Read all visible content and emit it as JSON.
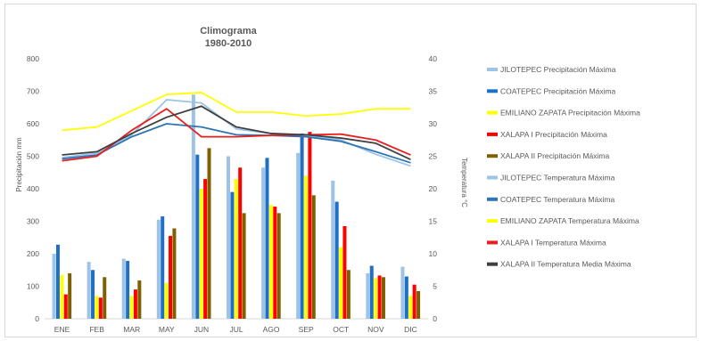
{
  "chart_data": {
    "type": "bar",
    "title": "Climograma",
    "subtitle": "1980-2010",
    "ylabel_left": "Precipitación  mm",
    "ylabel_right": "Temperatura  °C",
    "categories": [
      "ENE",
      "FEB",
      "MAR",
      "MAY",
      "JUN",
      "JUL",
      "AGO",
      "SEP",
      "OCT",
      "NOV",
      "DIC"
    ],
    "ylim_left": [
      0,
      800
    ],
    "yticks_left": [
      "0",
      "100",
      "200",
      "300",
      "400",
      "500",
      "600",
      "700",
      "800"
    ],
    "ylim_right": [
      0,
      40
    ],
    "yticks_right": [
      "0",
      "5",
      "10",
      "15",
      "20",
      "25",
      "30",
      "35",
      "40"
    ],
    "grid": false,
    "legend_position": "right",
    "bar_series": [
      {
        "name": "JILOTEPEC  Precipitación Máxima",
        "color": "#9dc3e6",
        "values": [
          200,
          175,
          185,
          305,
          690,
          500,
          465,
          510,
          425,
          140,
          160
        ]
      },
      {
        "name": "COATEPEC Precipitación Máxima",
        "color": "#1f6fc5",
        "values": [
          228,
          150,
          178,
          315,
          505,
          390,
          495,
          570,
          360,
          163,
          130
        ]
      },
      {
        "name": "EMILIANO ZAPATA Precipitación Máxima",
        "color": "#ffff00",
        "values": [
          135,
          70,
          70,
          110,
          400,
          430,
          350,
          440,
          220,
          125,
          70
        ]
      },
      {
        "name": "XALAPA I   Precipitación Máxima",
        "color": "#ff0000",
        "values": [
          75,
          65,
          90,
          255,
          430,
          465,
          345,
          575,
          285,
          133,
          105
        ]
      },
      {
        "name": "XALAPA II   Precipitación Máxima",
        "color": "#7f6000",
        "values": [
          140,
          128,
          118,
          278,
          525,
          325,
          325,
          380,
          150,
          128,
          85
        ]
      }
    ],
    "line_series": [
      {
        "name": "JILOTEPEC Temperatura Máxima",
        "color": "#9dc3e6",
        "values": [
          24.8,
          25.5,
          28.3,
          33.7,
          33.2,
          29.2,
          28.5,
          28.2,
          27.5,
          25.3,
          23.5
        ]
      },
      {
        "name": "COATEPEC Temperatura Máxima",
        "color": "#2e75b6",
        "values": [
          24.6,
          25.2,
          28,
          30,
          29.5,
          28.3,
          28.2,
          28,
          27.3,
          25.7,
          24
        ]
      },
      {
        "name": "EMILIANO ZAPATA Temperatura Máxima",
        "color": "#ffff00",
        "values": [
          29,
          29.5,
          32,
          34.5,
          34.8,
          31.8,
          31.8,
          31.2,
          31.5,
          32.3,
          32.3
        ]
      },
      {
        "name": "XALAPA I   Temperatura Máxima",
        "color": "#e81f1f",
        "values": [
          24.3,
          25,
          29,
          32.3,
          28,
          28,
          28.2,
          28.3,
          28.4,
          27.5,
          25.2
        ]
      },
      {
        "name": "XALAPA II Temperatura Media Máxima",
        "color": "#404040",
        "values": [
          25.2,
          25.7,
          28.5,
          31,
          32.7,
          29.5,
          28.5,
          28.3,
          27.8,
          27,
          24.5
        ]
      }
    ]
  }
}
